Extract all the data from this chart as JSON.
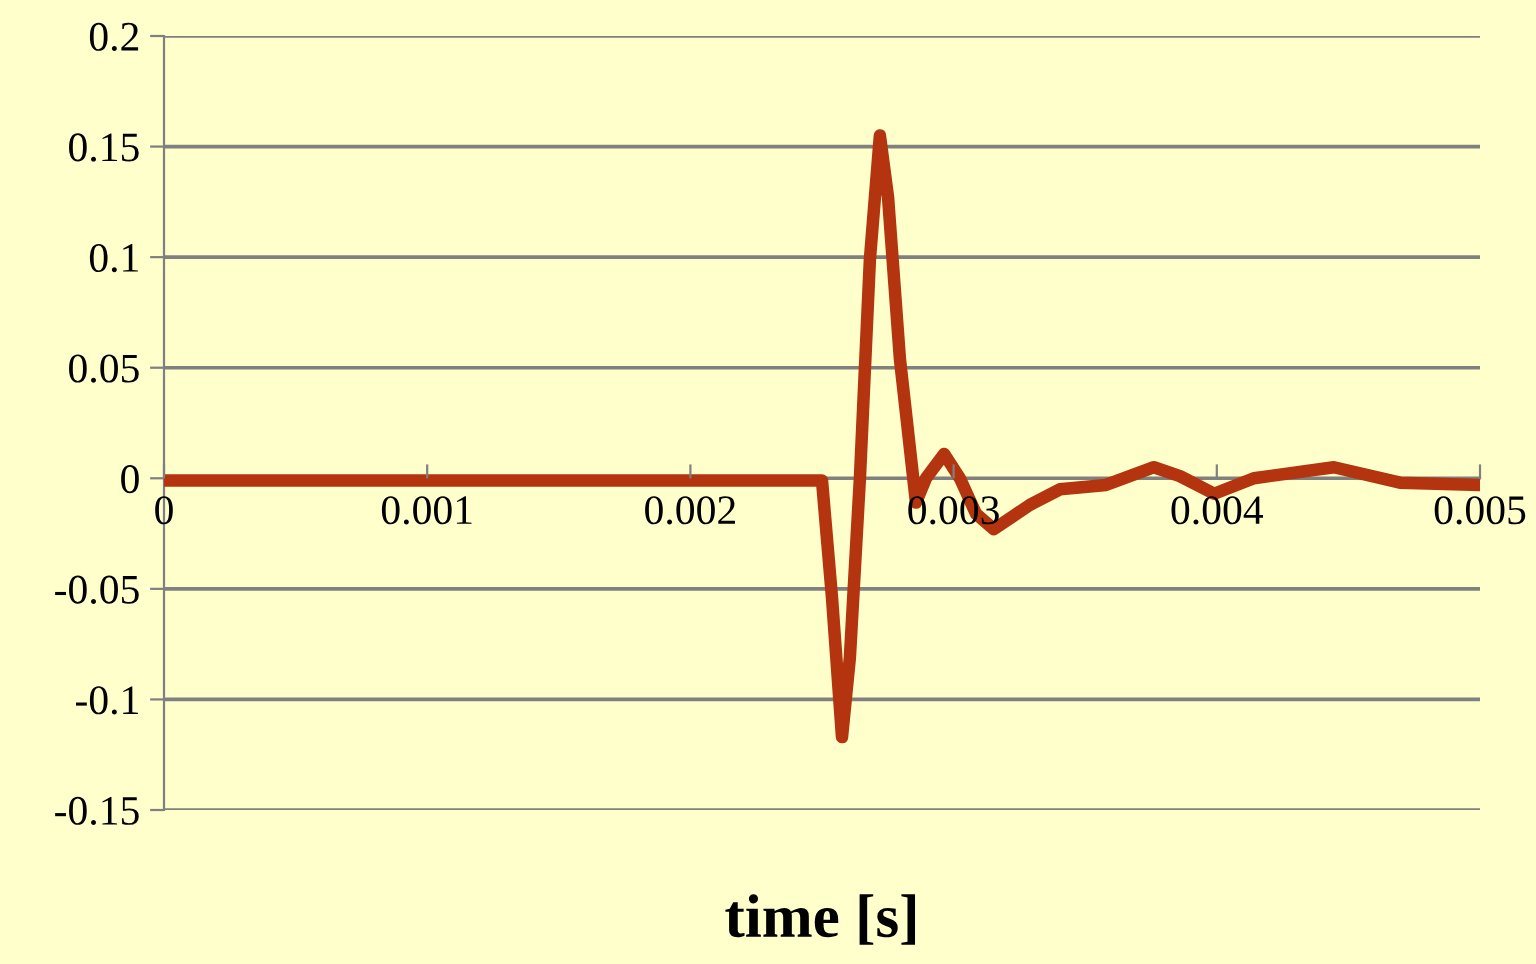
{
  "chart_data": {
    "type": "line",
    "xlabel": "time [s]",
    "series": [
      {
        "color": "#b3340e",
        "x": [
          0,
          0.0025,
          0.002538,
          0.002576,
          0.002606,
          0.002644,
          0.002682,
          0.00272,
          0.002751,
          0.002796,
          0.002857,
          0.002895,
          0.002964,
          0.003024,
          0.003085,
          0.003153,
          0.00329,
          0.003404,
          0.003579,
          0.003761,
          0.00386,
          0.00399,
          0.004141,
          0.004445,
          0.004696,
          0.005
        ],
        "values": [
          -0.001,
          -0.001,
          -0.054,
          -0.117,
          -0.081,
          0,
          0.099,
          0.155,
          0.127,
          0.054,
          -0.011,
          0,
          0.011,
          0,
          -0.016,
          -0.023,
          -0.012,
          -0.005,
          -0.003,
          0.005,
          0.001,
          -0.007,
          0,
          0.005,
          -0.002,
          -0.003
        ]
      }
    ],
    "xlim": [
      0,
      0.005
    ],
    "xticks": [
      0,
      0.001,
      0.002,
      0.003,
      0.004,
      0.005
    ],
    "ylim": [
      -0.15,
      0.2
    ],
    "yticks": [
      -0.15,
      -0.1,
      -0.05,
      0,
      0.05,
      0.1,
      0.15,
      0.2
    ],
    "grid": "y",
    "line_style": "solid"
  }
}
